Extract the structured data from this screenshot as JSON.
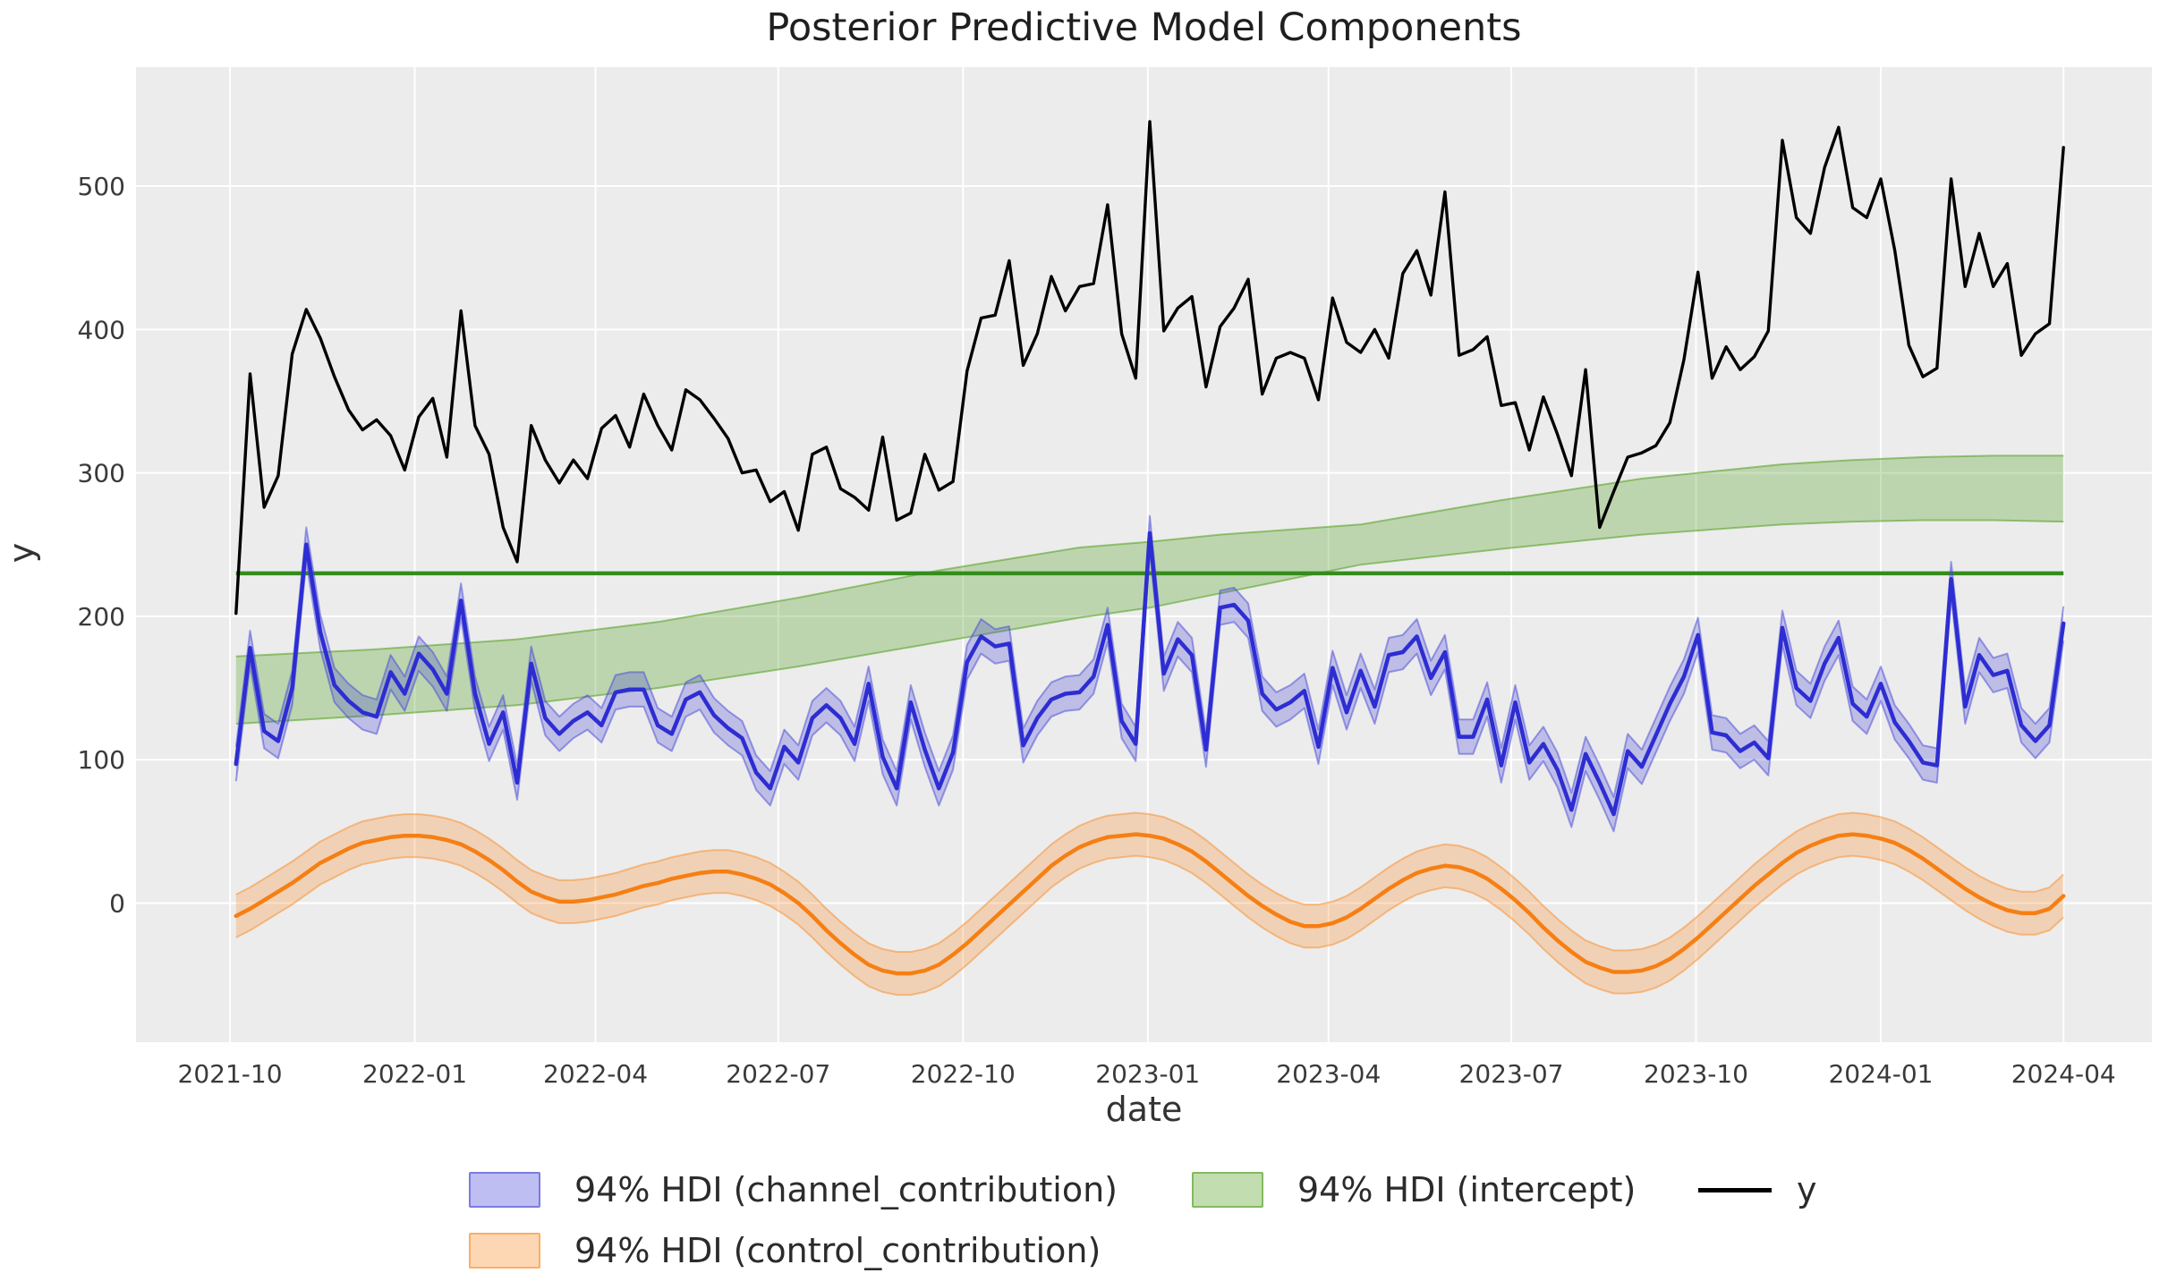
{
  "title": "Posterior Predictive Model Components",
  "axes": {
    "xlabel": "date",
    "ylabel": "y",
    "plot_bg": "#ececec",
    "grid_color": "#ffffff",
    "tick_color": "#3a3a3a",
    "yticks": [
      0,
      100,
      200,
      300,
      400,
      500
    ],
    "xticks": [
      {
        "date": "2021-10-01",
        "label": "2021-10"
      },
      {
        "date": "2022-01-01",
        "label": "2022-01"
      },
      {
        "date": "2022-04-01",
        "label": "2022-04"
      },
      {
        "date": "2022-07-01",
        "label": "2022-07"
      },
      {
        "date": "2022-10-01",
        "label": "2022-10"
      },
      {
        "date": "2023-01-01",
        "label": "2023-01"
      },
      {
        "date": "2023-04-01",
        "label": "2023-04"
      },
      {
        "date": "2023-07-01",
        "label": "2023-07"
      },
      {
        "date": "2023-10-01",
        "label": "2023-10"
      },
      {
        "date": "2024-01-01",
        "label": "2024-01"
      },
      {
        "date": "2024-04-01",
        "label": "2024-04"
      }
    ]
  },
  "legend": [
    {
      "label": "94% HDI (channel_contribution)",
      "swatch": "band",
      "color": "#4646d9"
    },
    {
      "label": "94% HDI (intercept)",
      "swatch": "band",
      "color": "#509e1e"
    },
    {
      "label": "y",
      "swatch": "line",
      "color": "#000000"
    },
    {
      "label": "94% HDI (control_contribution)",
      "swatch": "band",
      "color": "#fa8c28"
    }
  ],
  "chart_data": {
    "type": "line",
    "title": "Posterior Predictive Model Components",
    "xlabel": "date",
    "ylabel": "y",
    "ylim": [
      -97,
      583
    ],
    "grid": true,
    "legend_position": "bottom",
    "x_dates": [
      "2021-10-04",
      "2021-10-11",
      "2021-10-18",
      "2021-10-25",
      "2021-11-01",
      "2021-11-08",
      "2021-11-15",
      "2021-11-22",
      "2021-11-29",
      "2021-12-06",
      "2021-12-13",
      "2021-12-20",
      "2021-12-27",
      "2022-01-03",
      "2022-01-10",
      "2022-01-17",
      "2022-01-24",
      "2022-01-31",
      "2022-02-07",
      "2022-02-14",
      "2022-02-21",
      "2022-02-28",
      "2022-03-07",
      "2022-03-14",
      "2022-03-21",
      "2022-03-28",
      "2022-04-04",
      "2022-04-11",
      "2022-04-18",
      "2022-04-25",
      "2022-05-02",
      "2022-05-09",
      "2022-05-16",
      "2022-05-23",
      "2022-05-30",
      "2022-06-06",
      "2022-06-13",
      "2022-06-20",
      "2022-06-27",
      "2022-07-04",
      "2022-07-11",
      "2022-07-18",
      "2022-07-25",
      "2022-08-01",
      "2022-08-08",
      "2022-08-15",
      "2022-08-22",
      "2022-08-29",
      "2022-09-05",
      "2022-09-12",
      "2022-09-19",
      "2022-09-26",
      "2022-10-03",
      "2022-10-10",
      "2022-10-17",
      "2022-10-24",
      "2022-10-31",
      "2022-11-07",
      "2022-11-14",
      "2022-11-21",
      "2022-11-28",
      "2022-12-05",
      "2022-12-12",
      "2022-12-19",
      "2022-12-26",
      "2023-01-02",
      "2023-01-09",
      "2023-01-16",
      "2023-01-23",
      "2023-01-30",
      "2023-02-06",
      "2023-02-13",
      "2023-02-20",
      "2023-02-27",
      "2023-03-06",
      "2023-03-13",
      "2023-03-20",
      "2023-03-27",
      "2023-04-03",
      "2023-04-10",
      "2023-04-17",
      "2023-04-24",
      "2023-05-01",
      "2023-05-08",
      "2023-05-15",
      "2023-05-22",
      "2023-05-29",
      "2023-06-05",
      "2023-06-12",
      "2023-06-19",
      "2023-06-26",
      "2023-07-03",
      "2023-07-10",
      "2023-07-17",
      "2023-07-24",
      "2023-07-31",
      "2023-08-07",
      "2023-08-14",
      "2023-08-21",
      "2023-08-28",
      "2023-09-04",
      "2023-09-11",
      "2023-09-18",
      "2023-09-25",
      "2023-10-02",
      "2023-10-09",
      "2023-10-16",
      "2023-10-23",
      "2023-10-30",
      "2023-11-06",
      "2023-11-13",
      "2023-11-20",
      "2023-11-27",
      "2023-12-04",
      "2023-12-11",
      "2023-12-18",
      "2023-12-25",
      "2024-01-01",
      "2024-01-08",
      "2024-01-15",
      "2024-01-22",
      "2024-01-29",
      "2024-02-05",
      "2024-02-12",
      "2024-02-19",
      "2024-02-26",
      "2024-03-04",
      "2024-03-11",
      "2024-03-18",
      "2024-03-25",
      "2024-04-01"
    ],
    "series": [
      {
        "name": "y",
        "type": "line",
        "color": "#000000",
        "values": [
          202,
          369,
          276,
          298,
          383,
          414,
          394,
          367,
          344,
          330,
          337,
          326,
          302,
          339,
          352,
          311,
          413,
          333,
          313,
          262,
          238,
          333,
          309,
          293,
          309,
          296,
          331,
          340,
          318,
          355,
          333,
          316,
          358,
          351,
          338,
          324,
          300,
          302,
          280,
          287,
          260,
          313,
          318,
          289,
          283,
          274,
          325,
          267,
          272,
          313,
          288,
          294,
          371,
          408,
          410,
          448,
          375,
          397,
          437,
          413,
          430,
          432,
          487,
          397,
          366,
          545,
          399,
          415,
          423,
          360,
          402,
          415,
          435,
          355,
          380,
          384,
          380,
          351,
          422,
          391,
          384,
          400,
          380,
          439,
          455,
          424,
          496,
          382,
          386,
          395,
          347,
          349,
          316,
          353,
          327,
          298,
          372,
          262,
          287,
          311,
          314,
          319,
          335,
          379,
          440,
          366,
          388,
          372,
          381,
          399,
          532,
          478,
          467,
          513,
          541,
          485,
          478,
          505,
          455,
          389,
          367,
          373,
          505,
          430,
          467,
          430,
          446,
          382,
          397,
          404,
          527
        ]
      },
      {
        "name": "channel_contribution",
        "type": "line+band",
        "color": "#2d2dd2",
        "band_color": "#4646d9",
        "hdi_halfwidth": 12,
        "hdi_label": "94% HDI",
        "values": [
          97,
          178,
          120,
          113,
          150,
          250,
          189,
          152,
          141,
          133,
          130,
          161,
          146,
          174,
          163,
          146,
          211,
          146,
          111,
          133,
          84,
          167,
          129,
          118,
          127,
          133,
          124,
          147,
          149,
          149,
          124,
          118,
          142,
          147,
          131,
          122,
          115,
          91,
          80,
          109,
          98,
          129,
          138,
          129,
          111,
          153,
          102,
          80,
          140,
          107,
          80,
          105,
          168,
          186,
          179,
          181,
          110,
          129,
          142,
          146,
          147,
          158,
          194,
          127,
          111,
          258,
          160,
          184,
          173,
          107,
          206,
          208,
          197,
          146,
          135,
          140,
          148,
          109,
          164,
          133,
          162,
          137,
          173,
          175,
          186,
          157,
          175,
          116,
          116,
          142,
          96,
          140,
          98,
          111,
          93,
          65,
          104,
          84,
          62,
          106,
          95,
          117,
          139,
          158,
          187,
          119,
          117,
          106,
          112,
          101,
          192,
          150,
          141,
          167,
          185,
          139,
          130,
          153,
          126,
          113,
          98,
          96,
          226,
          137,
          173,
          159,
          162,
          124,
          113,
          124,
          195
        ]
      },
      {
        "name": "control_contribution",
        "type": "line+band",
        "color": "#f67f14",
        "band_color": "#fa8c28",
        "hdi_halfwidth": 15,
        "hdi_label": "94% HDI",
        "values": [
          -9,
          -4,
          2,
          8,
          14,
          21,
          28,
          33,
          38,
          42,
          44,
          46,
          47,
          47,
          46,
          44,
          41,
          36,
          30,
          23,
          15,
          8,
          4,
          1,
          1,
          2,
          4,
          6,
          9,
          12,
          14,
          17,
          19,
          21,
          22,
          22,
          20,
          17,
          13,
          7,
          0,
          -9,
          -19,
          -28,
          -36,
          -43,
          -47,
          -49,
          -49,
          -47,
          -43,
          -36,
          -28,
          -19,
          -10,
          -1,
          8,
          17,
          26,
          33,
          39,
          43,
          46,
          47,
          48,
          47,
          45,
          41,
          36,
          29,
          21,
          13,
          5,
          -2,
          -8,
          -13,
          -16,
          -16,
          -14,
          -10,
          -4,
          3,
          10,
          16,
          21,
          24,
          26,
          25,
          22,
          17,
          10,
          2,
          -7,
          -17,
          -26,
          -34,
          -41,
          -45,
          -48,
          -48,
          -47,
          -44,
          -39,
          -32,
          -24,
          -15,
          -6,
          3,
          12,
          20,
          28,
          35,
          40,
          44,
          47,
          48,
          47,
          45,
          42,
          37,
          31,
          24,
          17,
          10,
          4,
          -1,
          -5,
          -7,
          -7,
          -4,
          5
        ]
      },
      {
        "name": "intercept",
        "type": "band",
        "color": "#509e1e",
        "hdi_label": "94% HDI",
        "anchor_dates": [
          "2021-10-04",
          "2021-12-13",
          "2022-02-21",
          "2022-05-02",
          "2022-07-11",
          "2022-09-19",
          "2022-11-28",
          "2023-01-02",
          "2023-02-06",
          "2023-04-17",
          "2023-06-26",
          "2023-09-04",
          "2023-11-13",
          "2023-12-18",
          "2024-01-22",
          "2024-02-26",
          "2024-04-01"
        ],
        "lower": [
          125,
          131,
          138,
          150,
          165,
          182,
          199,
          206,
          216,
          236,
          247,
          257,
          264,
          266,
          267,
          267,
          266
        ],
        "upper": [
          172,
          177,
          184,
          196,
          213,
          232,
          248,
          252,
          257,
          264,
          281,
          296,
          306,
          309,
          311,
          312,
          312
        ]
      },
      {
        "name": "intercept_mean_line",
        "type": "hline",
        "color": "#348c1c",
        "value": 230,
        "span": [
          "2021-10-04",
          "2024-04-01"
        ]
      }
    ]
  }
}
